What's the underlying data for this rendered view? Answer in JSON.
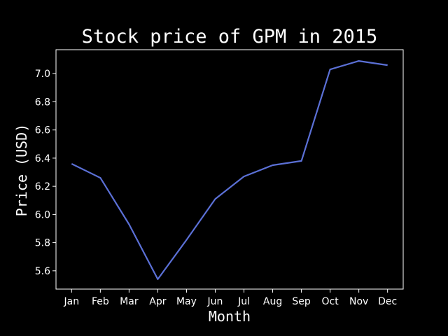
{
  "chart_data": {
    "type": "line",
    "title": "Stock price of GPM in 2015",
    "xlabel": "Month",
    "ylabel": "Price (USD)",
    "categories": [
      "Jan",
      "Feb",
      "Mar",
      "Apr",
      "May",
      "Jun",
      "Jul",
      "Aug",
      "Sep",
      "Oct",
      "Nov",
      "Dec"
    ],
    "series": [
      {
        "values": [
          6.36,
          6.26,
          5.93,
          5.54,
          5.82,
          6.11,
          6.27,
          6.35,
          6.38,
          7.03,
          7.09,
          7.06
        ]
      }
    ],
    "ylim": [
      5.47,
      7.17
    ],
    "yticks": [
      "5.6",
      "5.8",
      "6.0",
      "6.2",
      "6.4",
      "6.6",
      "6.8",
      "7.0"
    ],
    "grid": false,
    "colors": {
      "background": "#000000",
      "line": "#5b70d6",
      "axes": "#ffffff",
      "text": "#ffffff"
    }
  }
}
